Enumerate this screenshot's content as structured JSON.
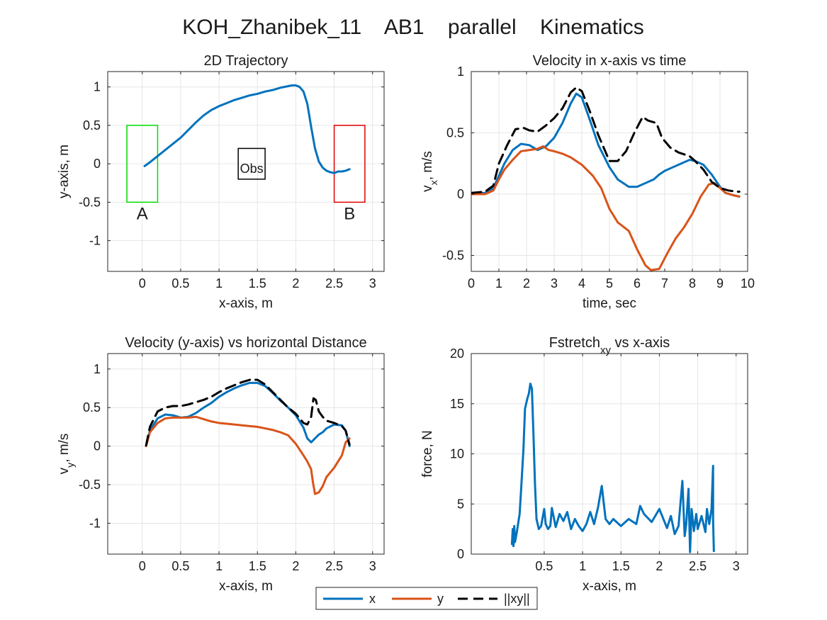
{
  "figure": {
    "title": "KOH_Zhanibek_11    AB1    parallel    Kinematics"
  },
  "legend": {
    "entries": [
      {
        "label": "x",
        "color": "#0072BD",
        "dash": "solid"
      },
      {
        "label": "y",
        "color": "#D95319",
        "dash": "solid"
      },
      {
        "label": "||xy||",
        "color": "#000000",
        "dash": "dashed"
      }
    ]
  },
  "chart_data": [
    {
      "type": "line",
      "title": "2D Trajectory",
      "xlabel": "x-axis, m",
      "ylabel": "y-axis, m",
      "xlim": [
        -0.45,
        3.15
      ],
      "ylim": [
        -1.4,
        1.2
      ],
      "xticks": [
        0,
        0.5,
        1,
        1.5,
        2,
        2.5,
        3
      ],
      "yticks": [
        -1,
        -0.5,
        0,
        0.5,
        1
      ],
      "grid": true,
      "series": [
        {
          "key": "x",
          "color": "#0072BD",
          "x": [
            0.03,
            0.1,
            0.2,
            0.3,
            0.4,
            0.5,
            0.6,
            0.7,
            0.8,
            0.9,
            1.0,
            1.1,
            1.2,
            1.3,
            1.4,
            1.5,
            1.6,
            1.7,
            1.8,
            1.9,
            1.95,
            2.0,
            2.05,
            2.1,
            2.15,
            2.2,
            2.25,
            2.3,
            2.35,
            2.4,
            2.45,
            2.5,
            2.55,
            2.6,
            2.65,
            2.7
          ],
          "y": [
            -0.03,
            0.02,
            0.1,
            0.18,
            0.26,
            0.34,
            0.44,
            0.54,
            0.63,
            0.7,
            0.75,
            0.79,
            0.83,
            0.86,
            0.89,
            0.91,
            0.94,
            0.96,
            0.99,
            1.01,
            1.02,
            1.02,
            1.0,
            0.94,
            0.78,
            0.48,
            0.2,
            0.03,
            -0.05,
            -0.09,
            -0.11,
            -0.12,
            -0.1,
            -0.1,
            -0.09,
            -0.07
          ]
        }
      ],
      "annotations": {
        "boxes": [
          {
            "label": "A",
            "color": "#00dd00",
            "x": [
              -0.2,
              0.2
            ],
            "y": [
              -0.5,
              0.5
            ]
          },
          {
            "label": "Obs",
            "color": "#000000",
            "x": [
              1.25,
              1.6
            ],
            "y": [
              -0.2,
              0.2
            ]
          },
          {
            "label": "B",
            "color": "#dd0000",
            "x": [
              2.5,
              2.9
            ],
            "y": [
              -0.5,
              0.5
            ]
          }
        ]
      }
    },
    {
      "type": "line",
      "title": "Velocity in x-axis vs time",
      "xlabel": "time, sec",
      "ylabel": "v_x, m/s",
      "xlim": [
        0,
        10
      ],
      "ylim": [
        -0.63,
        1.0
      ],
      "xticks": [
        0,
        1,
        2,
        3,
        4,
        5,
        6,
        7,
        8,
        9,
        10
      ],
      "yticks": [
        -0.5,
        0,
        0.5,
        1
      ],
      "grid": true,
      "series": [
        {
          "key": "x",
          "color": "#0072BD",
          "x": [
            0,
            0.5,
            0.8,
            1.0,
            1.2,
            1.5,
            1.8,
            2.1,
            2.4,
            2.7,
            3.0,
            3.3,
            3.6,
            3.8,
            4.0,
            4.3,
            4.6,
            5.0,
            5.3,
            5.7,
            6.0,
            6.3,
            6.6,
            6.8,
            7.0,
            7.3,
            7.6,
            7.9,
            8.1,
            8.4,
            8.7,
            9.0,
            9.2,
            9.5,
            9.7
          ],
          "y": [
            0.0,
            0.01,
            0.05,
            0.15,
            0.25,
            0.36,
            0.41,
            0.4,
            0.36,
            0.39,
            0.46,
            0.58,
            0.74,
            0.82,
            0.79,
            0.6,
            0.4,
            0.22,
            0.12,
            0.06,
            0.06,
            0.09,
            0.12,
            0.16,
            0.19,
            0.22,
            0.25,
            0.28,
            0.27,
            0.24,
            0.16,
            0.06,
            0.01,
            -0.01,
            -0.02
          ]
        },
        {
          "key": "y",
          "color": "#D95319",
          "x": [
            0,
            0.5,
            0.8,
            1.0,
            1.2,
            1.5,
            1.8,
            2.1,
            2.4,
            2.6,
            2.8,
            3.0,
            3.3,
            3.6,
            4.0,
            4.4,
            4.7,
            5.0,
            5.3,
            5.7,
            6.0,
            6.3,
            6.5,
            6.8,
            7.1,
            7.4,
            7.7,
            8.0,
            8.3,
            8.6,
            8.8,
            9.0,
            9.2,
            9.5,
            9.7
          ],
          "y": [
            0.0,
            0.0,
            0.03,
            0.12,
            0.2,
            0.28,
            0.35,
            0.36,
            0.37,
            0.39,
            0.36,
            0.35,
            0.33,
            0.3,
            0.24,
            0.15,
            0.05,
            -0.12,
            -0.23,
            -0.3,
            -0.45,
            -0.58,
            -0.62,
            -0.61,
            -0.48,
            -0.36,
            -0.27,
            -0.16,
            -0.02,
            0.08,
            0.09,
            0.05,
            0.01,
            -0.01,
            -0.02
          ]
        },
        {
          "key": "xy",
          "color": "#000000",
          "dashed": true,
          "x": [
            0,
            0.5,
            0.8,
            1.0,
            1.3,
            1.6,
            1.9,
            2.1,
            2.4,
            2.7,
            3.0,
            3.3,
            3.6,
            3.8,
            4.0,
            4.3,
            4.6,
            5.0,
            5.3,
            5.6,
            5.9,
            6.2,
            6.4,
            6.7,
            6.9,
            7.2,
            7.5,
            7.9,
            8.1,
            8.4,
            8.7,
            9.0,
            9.3,
            9.6,
            9.7
          ],
          "y": [
            0.01,
            0.02,
            0.07,
            0.25,
            0.4,
            0.53,
            0.54,
            0.52,
            0.51,
            0.56,
            0.62,
            0.7,
            0.83,
            0.87,
            0.84,
            0.67,
            0.48,
            0.27,
            0.27,
            0.35,
            0.5,
            0.63,
            0.6,
            0.58,
            0.46,
            0.38,
            0.34,
            0.31,
            0.27,
            0.2,
            0.1,
            0.05,
            0.03,
            0.02,
            0.02
          ]
        }
      ]
    },
    {
      "type": "line",
      "title": "Velocity (y-axis) vs horizontal Distance",
      "xlabel": "x-axis, m",
      "ylabel": "v_y, m/s",
      "xlim": [
        -0.45,
        3.15
      ],
      "ylim": [
        -1.4,
        1.2
      ],
      "xticks": [
        0,
        0.5,
        1,
        1.5,
        2,
        2.5,
        3
      ],
      "yticks": [
        -1,
        -0.5,
        0,
        0.5,
        1
      ],
      "grid": true,
      "series": [
        {
          "key": "x",
          "color": "#0072BD",
          "x": [
            0.05,
            0.1,
            0.2,
            0.3,
            0.4,
            0.5,
            0.6,
            0.7,
            0.8,
            0.9,
            1.0,
            1.1,
            1.2,
            1.3,
            1.4,
            1.5,
            1.6,
            1.7,
            1.8,
            1.9,
            2.0,
            2.1,
            2.15,
            2.2,
            2.25,
            2.3,
            2.35,
            2.4,
            2.5,
            2.6,
            2.65,
            2.7
          ],
          "y": [
            0.0,
            0.2,
            0.36,
            0.41,
            0.4,
            0.37,
            0.38,
            0.43,
            0.5,
            0.56,
            0.64,
            0.7,
            0.75,
            0.79,
            0.82,
            0.82,
            0.78,
            0.69,
            0.59,
            0.5,
            0.4,
            0.24,
            0.1,
            0.05,
            0.1,
            0.15,
            0.18,
            0.23,
            0.28,
            0.27,
            0.2,
            0.0
          ]
        },
        {
          "key": "y",
          "color": "#D95319",
          "x": [
            0.05,
            0.1,
            0.2,
            0.3,
            0.4,
            0.5,
            0.6,
            0.7,
            0.8,
            0.9,
            1.0,
            1.1,
            1.2,
            1.3,
            1.4,
            1.5,
            1.6,
            1.7,
            1.8,
            1.9,
            2.0,
            2.1,
            2.15,
            2.2,
            2.22,
            2.25,
            2.3,
            2.35,
            2.4,
            2.5,
            2.6,
            2.65,
            2.7
          ],
          "y": [
            0.0,
            0.18,
            0.3,
            0.36,
            0.37,
            0.37,
            0.37,
            0.38,
            0.35,
            0.32,
            0.3,
            0.29,
            0.28,
            0.27,
            0.26,
            0.25,
            0.23,
            0.21,
            0.18,
            0.14,
            0.03,
            -0.12,
            -0.2,
            -0.3,
            -0.45,
            -0.62,
            -0.6,
            -0.52,
            -0.4,
            -0.28,
            -0.12,
            0.05,
            0.1
          ]
        },
        {
          "key": "xy",
          "color": "#000000",
          "dashed": true,
          "x": [
            0.05,
            0.1,
            0.2,
            0.3,
            0.4,
            0.5,
            0.6,
            0.7,
            0.8,
            0.9,
            1.0,
            1.1,
            1.2,
            1.3,
            1.4,
            1.5,
            1.6,
            1.7,
            1.8,
            1.9,
            2.0,
            2.1,
            2.15,
            2.2,
            2.23,
            2.26,
            2.3,
            2.35,
            2.4,
            2.5,
            2.6,
            2.65,
            2.7
          ],
          "y": [
            0.01,
            0.25,
            0.45,
            0.5,
            0.52,
            0.52,
            0.54,
            0.57,
            0.6,
            0.64,
            0.7,
            0.75,
            0.79,
            0.83,
            0.86,
            0.86,
            0.8,
            0.7,
            0.6,
            0.5,
            0.42,
            0.3,
            0.28,
            0.38,
            0.62,
            0.6,
            0.45,
            0.38,
            0.33,
            0.3,
            0.26,
            0.2,
            0.02
          ]
        }
      ]
    },
    {
      "type": "line",
      "title": "Fstretch_xy vs x-axis",
      "xlabel": "x-axis, m",
      "ylabel": "force, N",
      "xlim": [
        -0.45,
        3.15
      ],
      "ylim": [
        0,
        20
      ],
      "xticks": [
        0.5,
        1,
        1.5,
        2,
        2.5,
        3
      ],
      "yticks": [
        0,
        5,
        10,
        15,
        20
      ],
      "grid": true,
      "series": [
        {
          "key": "x",
          "color": "#0072BD",
          "x": [
            0.08,
            0.09,
            0.1,
            0.11,
            0.12,
            0.13,
            0.15,
            0.18,
            0.2,
            0.23,
            0.25,
            0.28,
            0.3,
            0.32,
            0.34,
            0.36,
            0.38,
            0.4,
            0.43,
            0.46,
            0.5,
            0.52,
            0.55,
            0.58,
            0.6,
            0.65,
            0.7,
            0.75,
            0.8,
            0.85,
            0.9,
            0.95,
            1.0,
            1.05,
            1.1,
            1.15,
            1.2,
            1.25,
            1.3,
            1.35,
            1.4,
            1.5,
            1.6,
            1.7,
            1.75,
            1.8,
            1.9,
            2.0,
            2.1,
            2.15,
            2.2,
            2.25,
            2.3,
            2.33,
            2.35,
            2.38,
            2.4,
            2.42,
            2.45,
            2.48,
            2.5,
            2.55,
            2.6,
            2.62,
            2.65,
            2.68,
            2.7,
            2.7,
            2.71
          ],
          "y": [
            1.0,
            2.5,
            0.8,
            2.8,
            1.2,
            1.6,
            2.5,
            4.0,
            6.5,
            10.5,
            14.5,
            15.5,
            16.0,
            17.0,
            16.5,
            12.0,
            7.0,
            3.5,
            2.5,
            2.8,
            4.5,
            3.0,
            2.5,
            2.8,
            4.6,
            2.7,
            4.0,
            3.3,
            4.2,
            2.5,
            3.5,
            2.8,
            2.3,
            3.0,
            4.2,
            3.0,
            4.6,
            6.8,
            3.5,
            3.0,
            3.5,
            2.8,
            3.5,
            3.0,
            4.8,
            4.0,
            3.2,
            4.5,
            2.6,
            3.8,
            2.0,
            2.8,
            7.3,
            1.8,
            3.0,
            6.5,
            0.2,
            4.5,
            2.3,
            4.0,
            2.5,
            3.8,
            2.2,
            4.5,
            3.0,
            4.5,
            8.8,
            3.5,
            0.3
          ]
        }
      ]
    }
  ]
}
